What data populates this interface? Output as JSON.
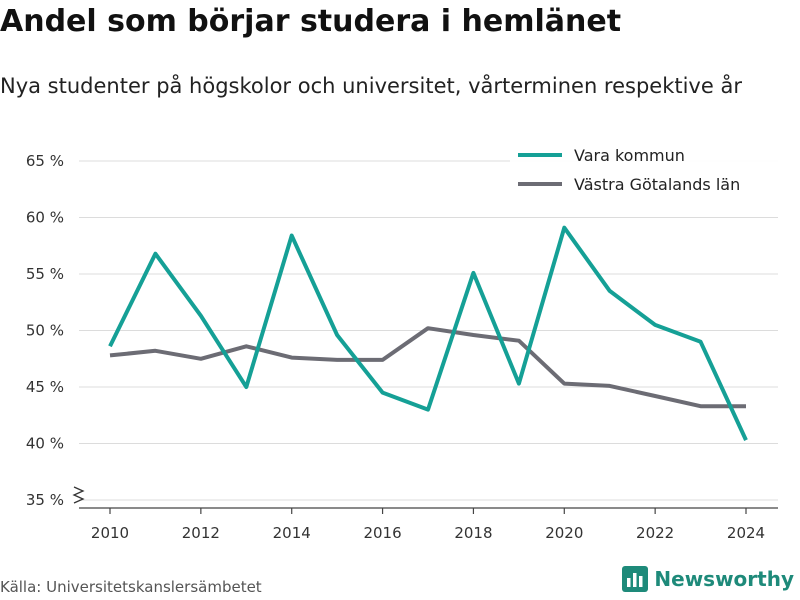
{
  "title": "Andel som börjar studera i hemlänet",
  "subtitle": "Nya studenter på högskolor och universitet, vårterminen respektive år",
  "source": "Källa: Universitetskanslersämbetet",
  "brand": {
    "name": "Newsworthy",
    "icon": "bar-chart-logo-icon",
    "color": "#1e8a7a"
  },
  "chart_data": {
    "type": "line",
    "x": [
      2010,
      2011,
      2012,
      2013,
      2014,
      2015,
      2016,
      2017,
      2018,
      2019,
      2020,
      2021,
      2022,
      2023,
      2024
    ],
    "x_ticks": [
      "2010",
      "2012",
      "2014",
      "2016",
      "2018",
      "2020",
      "2022",
      "2024"
    ],
    "y_ticks": [
      {
        "value": 35,
        "label": "35 %"
      },
      {
        "value": 40,
        "label": "40 %"
      },
      {
        "value": 45,
        "label": "45 %"
      },
      {
        "value": 50,
        "label": "50 %"
      },
      {
        "value": 55,
        "label": "55 %"
      },
      {
        "value": 60,
        "label": "60 %"
      },
      {
        "value": 65,
        "label": "65 %"
      }
    ],
    "ylim": [
      35,
      65
    ],
    "xlim": [
      2010,
      2024
    ],
    "axis_break": true,
    "grid": true,
    "legend_position": "top-right",
    "series": [
      {
        "name": "Vara kommun",
        "color": "#15a096",
        "values": [
          48.6,
          56.8,
          51.3,
          45.0,
          58.4,
          49.6,
          44.5,
          43.0,
          55.1,
          45.3,
          59.1,
          53.5,
          50.5,
          49.0,
          40.3
        ]
      },
      {
        "name": "Västra Götalands län",
        "color": "#6c6c74",
        "values": [
          47.8,
          48.2,
          47.5,
          48.6,
          47.6,
          47.4,
          47.4,
          50.2,
          49.6,
          49.1,
          45.3,
          45.1,
          44.2,
          43.3,
          43.3
        ]
      }
    ]
  }
}
